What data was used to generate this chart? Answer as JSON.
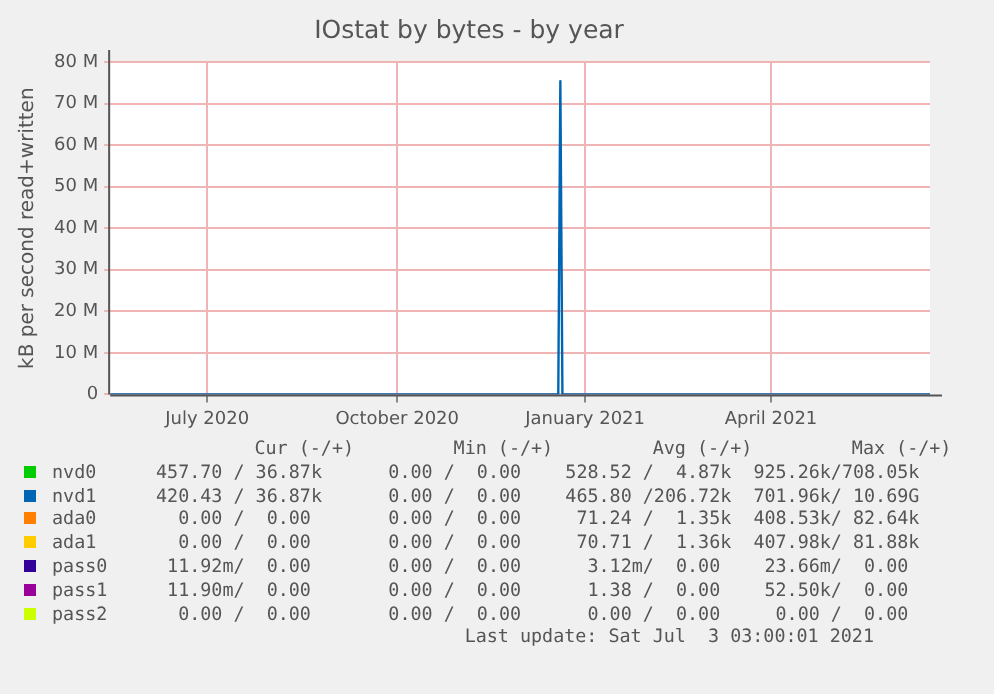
{
  "chart_data": {
    "type": "line",
    "title": "IOstat by bytes - by year",
    "ylabel": "kB per second read+written",
    "xlim": [
      "2020-05-29",
      "2021-06-30"
    ],
    "xticks": [
      {
        "value": "2020-07-15",
        "label": "July 2020"
      },
      {
        "value": "2020-10-15",
        "label": "October 2020"
      },
      {
        "value": "2021-01-14",
        "label": "January 2021"
      },
      {
        "value": "2021-04-14",
        "label": "April 2021"
      }
    ],
    "ylim": [
      0,
      80000000
    ],
    "yticks": [
      {
        "value": 0,
        "label": "0"
      },
      {
        "value": 10000000,
        "label": "10 M"
      },
      {
        "value": 20000000,
        "label": "20 M"
      },
      {
        "value": 30000000,
        "label": "30 M"
      },
      {
        "value": 40000000,
        "label": "40 M"
      },
      {
        "value": 50000000,
        "label": "50 M"
      },
      {
        "value": 60000000,
        "label": "60 M"
      },
      {
        "value": 70000000,
        "label": "70 M"
      },
      {
        "value": 80000000,
        "label": "80 M"
      }
    ],
    "grid": true,
    "legend": "bottom",
    "marker": "none",
    "line_style": "solid",
    "series": [
      {
        "name": "nvd0",
        "color": "#00cc00"
      },
      {
        "name": "nvd1",
        "color": "#0066b3",
        "x": [
          "2020-05-29",
          "2021-01-01",
          "2021-01-02",
          "2021-01-03",
          "2021-06-30"
        ],
        "values": [
          0,
          0,
          75400000,
          0,
          0
        ]
      },
      {
        "name": "ada0",
        "color": "#ff8000"
      },
      {
        "name": "ada1",
        "color": "#ffcc00"
      },
      {
        "name": "pass0",
        "color": "#330099"
      },
      {
        "name": "pass1",
        "color": "#990099"
      },
      {
        "name": "pass2",
        "color": "#ccff00"
      }
    ],
    "annotations": [
      "       Cur (-/+)         Min (-/+)         Avg (-/+)         Max (-/+)",
      "457.70 / 36.87k      0.00 /  0.00    528.52 /  4.87k  925.26k/708.05k",
      "420.43 / 36.87k      0.00 /  0.00    465.80 /206.72k  701.96k/ 10.69G",
      "  0.00 /  0.00       0.00 /  0.00     71.24 /  1.35k  408.53k/ 82.64k",
      "  0.00 /  0.00       0.00 /  0.00     70.71 /  1.36k  407.98k/ 81.88k",
      " 11.92m/  0.00       0.00 /  0.00      3.12m/  0.00    23.66m/  0.00",
      " 11.90m/  0.00       0.00 /  0.00      1.38 /  0.00    52.50k/  0.00",
      "  0.00 /  0.00       0.00 /  0.00      0.00 /  0.00     0.00 /  0.00",
      "                          Last update: Sat Jul  3 03:00:01 2021"
    ]
  }
}
